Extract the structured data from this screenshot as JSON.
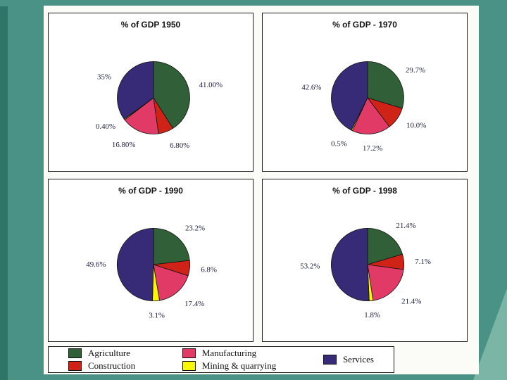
{
  "palette": [
    "#316038",
    "#d02318",
    "#e23a67",
    "#f8f800",
    "#372a77"
  ],
  "chart_data": [
    {
      "type": "pie",
      "title": "% of GDP 1950",
      "categories": [
        "Agriculture",
        "Construction",
        "Manufacturing",
        "Mining & quarrying",
        "Services"
      ],
      "values": [
        41.0,
        6.8,
        16.8,
        0.4,
        35.0
      ],
      "labels": [
        "41.00%",
        "6.80%",
        "16.80%",
        "0.40%",
        "35%"
      ],
      "legend_position": "none"
    },
    {
      "type": "pie",
      "title": "% of GDP - 1970",
      "categories": [
        "Agriculture",
        "Construction",
        "Manufacturing",
        "Mining & quarrying",
        "Services"
      ],
      "values": [
        29.7,
        10.0,
        17.2,
        0.5,
        42.6
      ],
      "labels": [
        "29.7%",
        "10.0%",
        "17.2%",
        "0.5%",
        "42.6%"
      ],
      "legend_position": "none"
    },
    {
      "type": "pie",
      "title": "% of GDP - 1990",
      "categories": [
        "Agriculture",
        "Construction",
        "Manufacturing",
        "Mining & quarrying",
        "Services"
      ],
      "values": [
        23.2,
        6.8,
        17.4,
        3.1,
        49.6
      ],
      "labels": [
        "23.2%",
        "6.8%",
        "17.4%",
        "3.1%",
        "49.6%"
      ],
      "legend_position": "none"
    },
    {
      "type": "pie",
      "title": "% of GDP - 1998",
      "categories": [
        "Agriculture",
        "Construction",
        "Manufacturing",
        "Mining & quarrying",
        "Services"
      ],
      "values": [
        21.4,
        7.1,
        21.4,
        1.8,
        53.2
      ],
      "labels": [
        "21.4%",
        "7.1%",
        "21.4%",
        "1.8%",
        "53.2%"
      ],
      "legend_position": "none"
    }
  ],
  "legend": {
    "columns": [
      [
        {
          "label": "Agriculture",
          "color": "#316038"
        },
        {
          "label": "Construction",
          "color": "#d02318"
        }
      ],
      [
        {
          "label": "Manufacturing",
          "color": "#e23a67"
        },
        {
          "label": "Mining & quarrying",
          "color": "#f8f800"
        }
      ],
      [
        {
          "label": "Services",
          "color": "#372a77"
        }
      ]
    ]
  },
  "colors": {
    "page_background": "#4a9285",
    "left_strip": "#2e7568",
    "corner_accent": "#7ab5a5",
    "slide_background": "#fbfbf8"
  }
}
